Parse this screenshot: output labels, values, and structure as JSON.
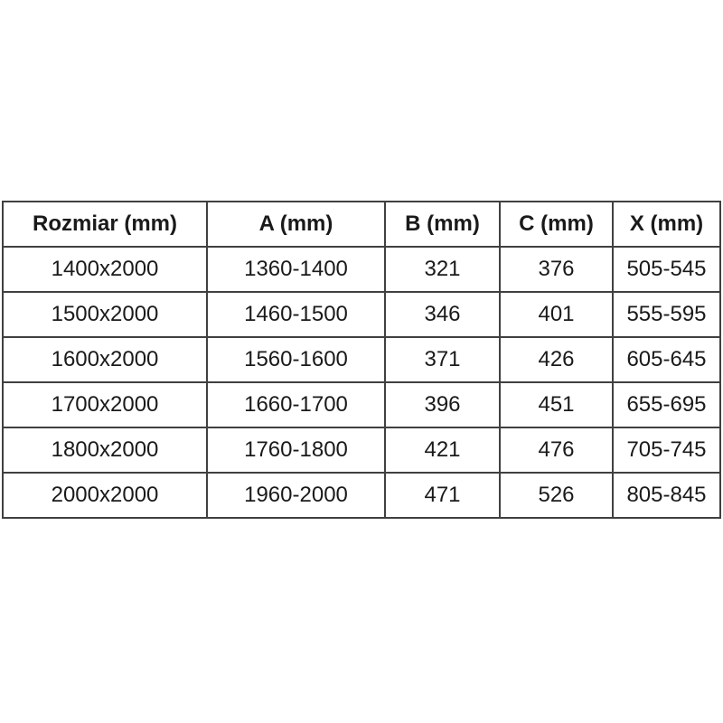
{
  "table": {
    "title": "size-dimension-table",
    "border_color": "#404040",
    "text_color": "#1a1a1a",
    "background_color": "#ffffff",
    "headers": {
      "rozmiar": "Rozmiar (mm)",
      "a": "A (mm)",
      "b": "B (mm)",
      "c": "C (mm)",
      "x": "X (mm)"
    },
    "rows": [
      [
        "1400x2000",
        "1360-1400",
        "321",
        "376",
        "505-545"
      ],
      [
        "1500x2000",
        "1460-1500",
        "346",
        "401",
        "555-595"
      ],
      [
        "1600x2000",
        "1560-1600",
        "371",
        "426",
        "605-645"
      ],
      [
        "1700x2000",
        "1660-1700",
        "396",
        "451",
        "655-695"
      ],
      [
        "1800x2000",
        "1760-1800",
        "421",
        "476",
        "705-745"
      ],
      [
        "2000x2000",
        "1960-2000",
        "471",
        "526",
        "805-845"
      ]
    ]
  }
}
